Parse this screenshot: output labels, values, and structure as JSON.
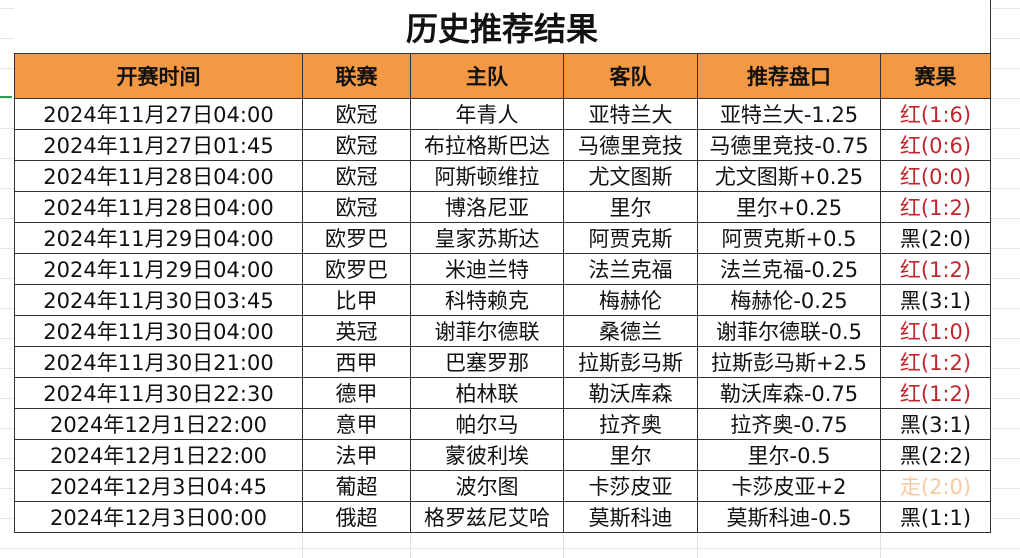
{
  "title": "历史推荐结果",
  "headers": [
    "开赛时间",
    "联赛",
    "主队",
    "客队",
    "推荐盘口",
    "赛果"
  ],
  "colors": {
    "header_bg": "#f39945",
    "win": "#c0272d",
    "loss": "#111111",
    "push": "#f6c9a0"
  },
  "rows": [
    {
      "time": "2024年11月27日04:00",
      "league": "欧冠",
      "home": "年青人",
      "away": "亚特兰大",
      "pick": "亚特兰大-1.25",
      "result": "红(1:6)",
      "status": "red"
    },
    {
      "time": "2024年11月27日01:45",
      "league": "欧冠",
      "home": "布拉格斯巴达",
      "away": "马德里竞技",
      "pick": "马德里竞技-0.75",
      "result": "红(0:6)",
      "status": "red"
    },
    {
      "time": "2024年11月28日04:00",
      "league": "欧冠",
      "home": "阿斯顿维拉",
      "away": "尤文图斯",
      "pick": "尤文图斯+0.25",
      "result": "红(0:0)",
      "status": "red"
    },
    {
      "time": "2024年11月28日04:00",
      "league": "欧冠",
      "home": "博洛尼亚",
      "away": "里尔",
      "pick": "里尔+0.25",
      "result": "红(1:2)",
      "status": "red"
    },
    {
      "time": "2024年11月29日04:00",
      "league": "欧罗巴",
      "home": "皇家苏斯达",
      "away": "阿贾克斯",
      "pick": "阿贾克斯+0.5",
      "result": "黑(2:0)",
      "status": "black"
    },
    {
      "time": "2024年11月29日04:00",
      "league": "欧罗巴",
      "home": "米迪兰特",
      "away": "法兰克福",
      "pick": "法兰克福-0.25",
      "result": "红(1:2)",
      "status": "red"
    },
    {
      "time": "2024年11月30日03:45",
      "league": "比甲",
      "home": "科特赖克",
      "away": "梅赫伦",
      "pick": "梅赫伦-0.25",
      "result": "黑(3:1)",
      "status": "black"
    },
    {
      "time": "2024年11月30日04:00",
      "league": "英冠",
      "home": "谢菲尔德联",
      "away": "桑德兰",
      "pick": "谢菲尔德联-0.5",
      "result": "红(1:0)",
      "status": "red"
    },
    {
      "time": "2024年11月30日21:00",
      "league": "西甲",
      "home": "巴塞罗那",
      "away": "拉斯彭马斯",
      "pick": "拉斯彭马斯+2.5",
      "result": "红(1:2)",
      "status": "red"
    },
    {
      "time": "2024年11月30日22:30",
      "league": "德甲",
      "home": "柏林联",
      "away": "勒沃库森",
      "pick": "勒沃库森-0.75",
      "result": "红(1:2)",
      "status": "red"
    },
    {
      "time": "2024年12月1日22:00",
      "league": "意甲",
      "home": "帕尔马",
      "away": "拉齐奥",
      "pick": "拉齐奥-0.75",
      "result": "黑(3:1)",
      "status": "black"
    },
    {
      "time": "2024年12月1日22:00",
      "league": "法甲",
      "home": "蒙彼利埃",
      "away": "里尔",
      "pick": "里尔-0.5",
      "result": "黑(2:2)",
      "status": "black"
    },
    {
      "time": "2024年12月3日04:45",
      "league": "葡超",
      "home": "波尔图",
      "away": "卡莎皮亚",
      "pick": "卡莎皮亚+2",
      "result": "走(2:0)",
      "status": "push"
    },
    {
      "time": "2024年12月3日00:00",
      "league": "俄超",
      "home": "格罗兹尼艾哈",
      "away": "莫斯科迪",
      "pick": "莫斯科迪-0.5",
      "result": "黑(1:1)",
      "status": "black"
    }
  ]
}
